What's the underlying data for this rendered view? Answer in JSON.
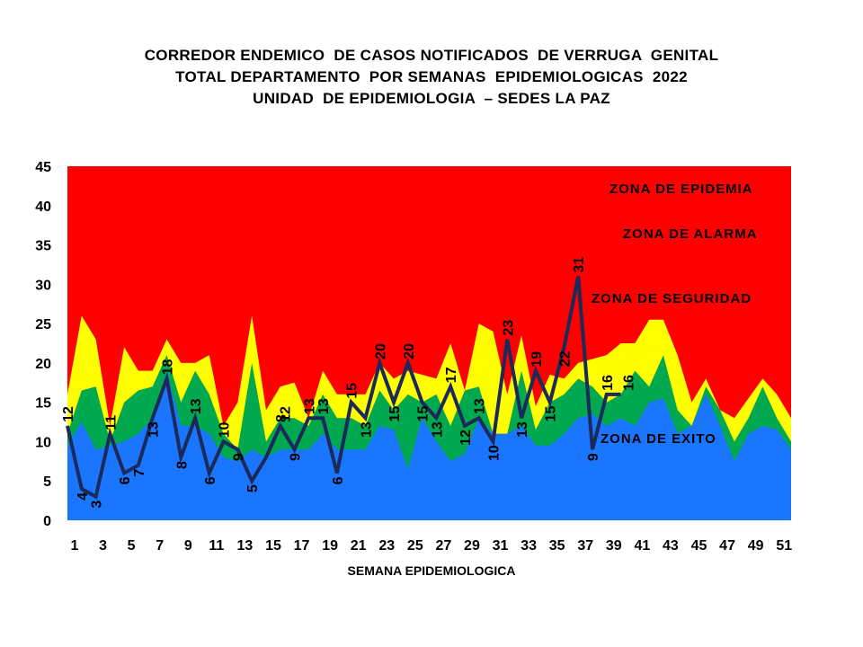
{
  "title_lines": [
    "CORREDOR ENDEMICO  DE CASOS NOTIFICADOS  DE VERRUGA  GENITAL",
    "TOTAL DEPARTAMENTO  POR SEMANAS  EPIDEMIOLOGICAS  2022",
    "UNIDAD  DE EPIDEMIOLOGIA  – SEDES LA PAZ"
  ],
  "chart_data": {
    "type": "area",
    "xlabel": "SEMANA EPIDEMIOLOGICA",
    "ylabel": "",
    "ylim": [
      0,
      45
    ],
    "yticks": [
      "0",
      "5",
      "10",
      "15",
      "20",
      "25",
      "30",
      "35",
      "40",
      "45"
    ],
    "xticks": [
      "1",
      "3",
      "5",
      "7",
      "9",
      "11",
      "13",
      "15",
      "17",
      "19",
      "21",
      "23",
      "25",
      "27",
      "29",
      "31",
      "33",
      "35",
      "37",
      "39",
      "41",
      "43",
      "45",
      "47",
      "49",
      "51"
    ],
    "weeks": [
      1,
      2,
      3,
      4,
      5,
      6,
      7,
      8,
      9,
      10,
      11,
      12,
      13,
      14,
      15,
      16,
      17,
      18,
      19,
      20,
      21,
      22,
      23,
      24,
      25,
      26,
      27,
      28,
      29,
      30,
      31,
      32,
      33,
      34,
      35,
      36,
      37,
      38,
      39,
      40,
      41,
      42,
      43,
      44,
      45,
      46,
      47,
      48,
      49,
      50,
      51,
      52
    ],
    "zones": {
      "exito": [
        9.5,
        12.5,
        9,
        9.5,
        10,
        11,
        13,
        19,
        12,
        12,
        11,
        8,
        7.5,
        9,
        8,
        9,
        9,
        9,
        11,
        9,
        9,
        9,
        12,
        11.5,
        6.5,
        13,
        10,
        7.5,
        8.5,
        13,
        11,
        11,
        12,
        9.5,
        9.5,
        11,
        13,
        13.5,
        12,
        13,
        12,
        15,
        15.5,
        11,
        12,
        16,
        12,
        7.5,
        11,
        12,
        11.5,
        9
      ],
      "seguridad": [
        11,
        16.5,
        17,
        10,
        15,
        16.5,
        17,
        21,
        15,
        19,
        16,
        11,
        9,
        20,
        10,
        13,
        13,
        12,
        16,
        13,
        13,
        12,
        16.5,
        14,
        16,
        15,
        16,
        12,
        16.5,
        17,
        11,
        11,
        19,
        11.5,
        15,
        16,
        18,
        17,
        15,
        16,
        19,
        17,
        21,
        14,
        12,
        17,
        14,
        10,
        13,
        17,
        13,
        10
      ],
      "alarma": [
        16,
        26,
        23,
        12,
        22,
        19,
        19,
        23,
        20,
        20,
        21,
        12,
        15,
        26,
        14,
        17,
        17.5,
        13,
        19,
        16,
        16,
        16,
        20,
        18,
        19,
        18.5,
        18,
        22.5,
        16.5,
        25,
        24,
        16,
        23.5,
        14.5,
        18.5,
        18,
        20,
        20.5,
        21,
        22.5,
        22.5,
        25.5,
        25.5,
        21,
        15,
        18,
        14,
        13,
        15.5,
        18,
        16,
        13
      ],
      "epidemia_top": 45
    },
    "series": [
      {
        "name": "2022",
        "values": [
          12,
          4,
          3,
          11,
          6,
          7,
          13,
          18,
          8,
          13,
          6,
          10,
          9,
          5,
          8,
          12,
          9,
          13,
          13,
          6,
          15,
          13,
          20,
          15,
          20,
          15,
          13,
          17,
          12,
          13,
          10,
          23,
          13,
          19,
          15,
          22,
          31,
          9,
          16,
          16
        ]
      }
    ],
    "data_labels": [
      {
        "week": 1,
        "text": "12"
      },
      {
        "week": 2,
        "text": "4"
      },
      {
        "week": 3,
        "text": "3"
      },
      {
        "week": 4,
        "text": "11"
      },
      {
        "week": 5,
        "text": "6"
      },
      {
        "week": 6,
        "text": "7"
      },
      {
        "week": 7,
        "text": "13"
      },
      {
        "week": 8,
        "text": "18"
      },
      {
        "week": 9,
        "text": "8"
      },
      {
        "week": 10,
        "text": "13"
      },
      {
        "week": 11,
        "text": "6"
      },
      {
        "week": 12,
        "text": "10"
      },
      {
        "week": 13,
        "text": "9"
      },
      {
        "week": 14,
        "text": "5"
      },
      {
        "week": 16,
        "text": "8"
      },
      {
        "week": 16.3,
        "text": "12"
      },
      {
        "week": 17,
        "text": "9"
      },
      {
        "week": 18,
        "text": "13"
      },
      {
        "week": 19,
        "text": "13"
      },
      {
        "week": 20,
        "text": "6"
      },
      {
        "week": 21,
        "text": "15"
      },
      {
        "week": 22,
        "text": "13"
      },
      {
        "week": 23,
        "text": "20"
      },
      {
        "week": 24,
        "text": "15"
      },
      {
        "week": 25,
        "text": "20"
      },
      {
        "week": 26,
        "text": "15"
      },
      {
        "week": 27,
        "text": "13"
      },
      {
        "week": 28,
        "text": "17"
      },
      {
        "week": 29,
        "text": "12"
      },
      {
        "week": 30,
        "text": "13"
      },
      {
        "week": 31,
        "text": "10"
      },
      {
        "week": 32,
        "text": "23"
      },
      {
        "week": 33,
        "text": "13"
      },
      {
        "week": 34,
        "text": "19"
      },
      {
        "week": 35,
        "text": "15"
      },
      {
        "week": 36,
        "text": "22"
      },
      {
        "week": 37,
        "text": "31"
      },
      {
        "week": 38,
        "text": "9"
      },
      {
        "week": 39,
        "text": "16"
      },
      {
        "week": 40.5,
        "text": "16"
      }
    ],
    "zone_labels": {
      "epidemia": "ZONA DE EPIDEMIA",
      "alarma": "ZONA DE ALARMA",
      "seguridad": "ZONA DE  SEGURIDAD",
      "exito": "ZONA DE  EXITO"
    },
    "colors": {
      "epidemia": "#ff0000",
      "alarma": "#ffff00",
      "seguridad": "#00a84f",
      "exito": "#1a75ff",
      "line": "#1b2a5a"
    }
  }
}
